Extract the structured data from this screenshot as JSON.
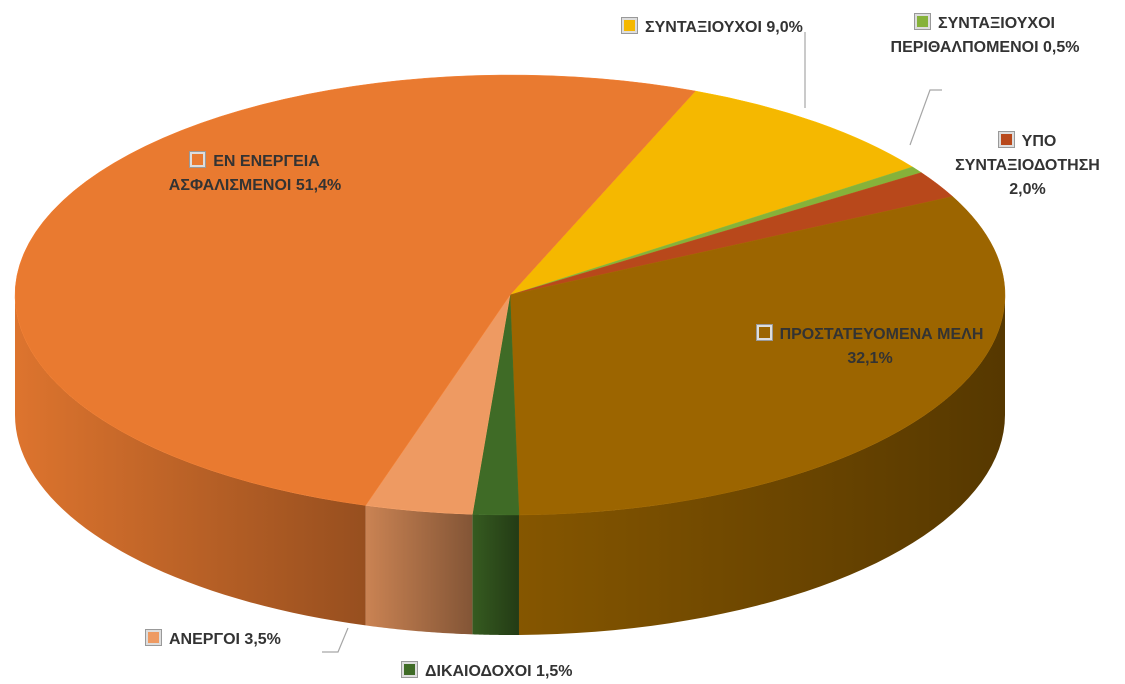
{
  "chart_data": {
    "type": "pie",
    "three_d": true,
    "categories": [
      "ΣΥΝΤΑΞΙΟΥΧΟΙ",
      "ΣΥΝΤΑΞΙΟΥΧΟΙ ΠΕΡΙΘΑΛΠΟΜΕΝΟΙ",
      "ΥΠΟ ΣΥΝΤΑΞΙΟΔΟΤΗΣΗ",
      "ΠΡΟΣΤΑΤΕΥΟΜΕΝΑ ΜΕΛΗ",
      "ΔΙΚΑΙΟΔΟΧΟΙ",
      "ΑΝΕΡΓΟΙ",
      "ΕΝ ΕΝΕΡΓΕΙΑ ΑΣΦΑΛΙΣΜΕΝΟΙ"
    ],
    "values": [
      9.0,
      0.5,
      2.0,
      32.1,
      1.5,
      3.5,
      51.4
    ],
    "value_labels": [
      "9,0%",
      "0,5%",
      "2,0%",
      "32,1%",
      "1,5%",
      "3,5%",
      "51,4%"
    ],
    "colors": [
      "#f5b800",
      "#86b23a",
      "#b8481b",
      "#9c6500",
      "#3f6b26",
      "#ee9a62",
      "#e97a30"
    ]
  }
}
